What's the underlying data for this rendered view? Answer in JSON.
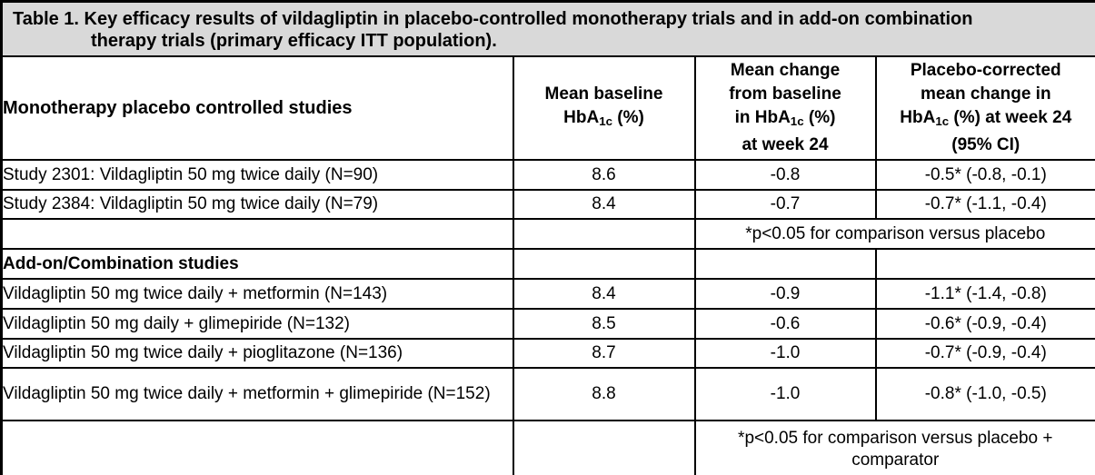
{
  "colors": {
    "title_background": "#d9d9d9",
    "border": "#000000",
    "body_background": "#ffffff",
    "text": "#000000"
  },
  "title": {
    "line1": "Table 1. Key efficacy results of vildagliptin in placebo-controlled monotherapy trials and in add-on combination",
    "line2": "therapy trials (primary efficacy ITT population)."
  },
  "header": {
    "col1": "Monotherapy placebo controlled studies",
    "col2": [
      {
        "t": "Mean baseline"
      },
      {
        "br": true
      },
      {
        "t": "HbA"
      },
      {
        "t": "1c",
        "sub": true
      },
      {
        "t": " (%)"
      }
    ],
    "col3": [
      {
        "t": "Mean change"
      },
      {
        "br": true
      },
      {
        "t": "from baseline"
      },
      {
        "br": true
      },
      {
        "t": "in HbA"
      },
      {
        "t": "1c",
        "sub": true
      },
      {
        "t": " (%)"
      },
      {
        "br": true
      },
      {
        "t": "at week 24"
      }
    ],
    "col4": [
      {
        "t": "Placebo-corrected"
      },
      {
        "br": true
      },
      {
        "t": "mean change in"
      },
      {
        "br": true
      },
      {
        "t": "HbA"
      },
      {
        "t": "1c",
        "sub": true
      },
      {
        "t": " (%) at week 24"
      },
      {
        "br": true
      },
      {
        "t": "(95% CI)"
      }
    ]
  },
  "monotherapy_rows": [
    {
      "label": "Study 2301: Vildagliptin 50 mg twice daily (N=90)",
      "baseline": "8.6",
      "change": "-0.8",
      "corrected": "-0.5* (-0.8, -0.1)"
    },
    {
      "label": "Study 2384: Vildagliptin 50 mg twice daily (N=79)",
      "baseline": "8.4",
      "change": "-0.7",
      "corrected": "-0.7* (-1.1, -0.4)"
    }
  ],
  "note_monotherapy": "*p<0.05 for comparison versus placebo",
  "combination_section_label": "Add-on/Combination studies",
  "combination_rows": [
    {
      "label": "Vildagliptin 50 mg twice daily + metformin (N=143)",
      "baseline": "8.4",
      "change": "-0.9",
      "corrected": "-1.1* (-1.4, -0.8)"
    },
    {
      "label": "Vildagliptin 50 mg daily + glimepiride (N=132)",
      "baseline": "8.5",
      "change": "-0.6",
      "corrected": "-0.6* (-0.9, -0.4)"
    },
    {
      "label": "Vildagliptin 50 mg twice daily + pioglitazone (N=136)",
      "baseline": "8.7",
      "change": "-1.0",
      "corrected": "-0.7* (-0.9, -0.4)"
    },
    {
      "label": "Vildagliptin 50 mg twice daily + metformin + glimepiride (N=152)",
      "baseline": "8.8",
      "change": "-1.0",
      "corrected": "-0.8* (-1.0, -0.5)"
    }
  ],
  "note_combination": "*p<0.05 for comparison versus placebo + comparator"
}
